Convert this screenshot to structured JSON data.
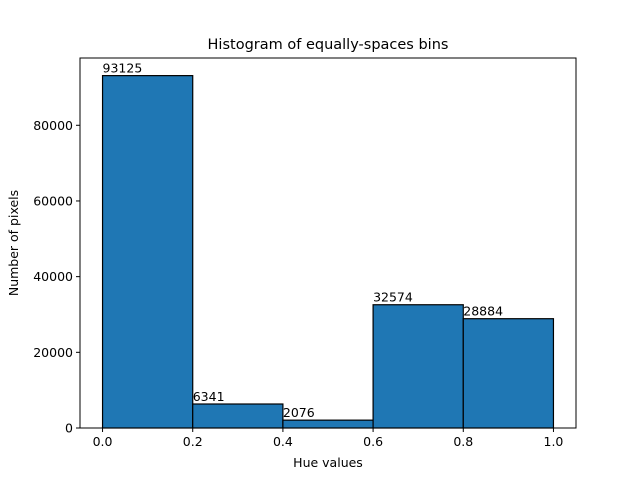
{
  "chart_data": {
    "type": "bar",
    "title": "Histogram of equally-spaces bins",
    "xlabel": "Hue values",
    "ylabel": "Number of pixels",
    "bins": [
      {
        "start": 0.0,
        "end": 0.2,
        "value": 93125,
        "label": "93125"
      },
      {
        "start": 0.2,
        "end": 0.4,
        "value": 6341,
        "label": "6341"
      },
      {
        "start": 0.4,
        "end": 0.6,
        "value": 2076,
        "label": "2076"
      },
      {
        "start": 0.6,
        "end": 0.8,
        "value": 32574,
        "label": "32574"
      },
      {
        "start": 0.8,
        "end": 1.0,
        "value": 28884,
        "label": "28884"
      }
    ],
    "xlim": [
      -0.05,
      1.05
    ],
    "ylim": [
      0,
      97781
    ],
    "x_ticks": [
      {
        "value": 0.0,
        "label": "0.0"
      },
      {
        "value": 0.2,
        "label": "0.2"
      },
      {
        "value": 0.4,
        "label": "0.4"
      },
      {
        "value": 0.6,
        "label": "0.6"
      },
      {
        "value": 0.8,
        "label": "0.8"
      },
      {
        "value": 1.0,
        "label": "1.0"
      }
    ],
    "y_ticks": [
      {
        "value": 0,
        "label": "0"
      },
      {
        "value": 20000,
        "label": "20000"
      },
      {
        "value": 40000,
        "label": "40000"
      },
      {
        "value": 60000,
        "label": "60000"
      },
      {
        "value": 80000,
        "label": "80000"
      }
    ],
    "bar_color": "#1f77b4",
    "edge_color": "#000000",
    "grid": false,
    "legend": "none"
  }
}
